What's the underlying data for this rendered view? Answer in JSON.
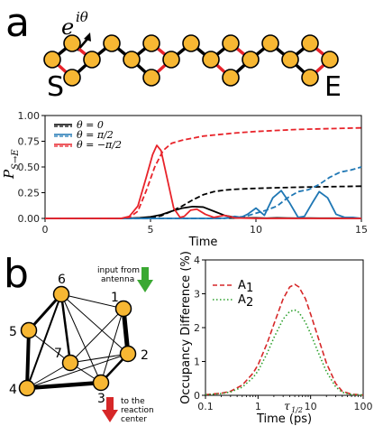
{
  "panel_a": {
    "letter": "a",
    "phase_label": "e",
    "phase_sup": "iθ",
    "start_label": "S",
    "end_label": "E"
  },
  "panel_b": {
    "letter": "b",
    "nodes": [
      "1",
      "2",
      "3",
      "4",
      "5",
      "6",
      "7"
    ],
    "input_label_1": "input from",
    "input_label_2": "antenna",
    "output_label_1": "to the",
    "output_label_2": "reaction",
    "output_label_3": "center"
  },
  "colors": {
    "black": "#000000",
    "blue": "#1f77b4",
    "red": "#e8232a",
    "node_fill": "#f7b733",
    "green": "#3aa832",
    "dark_red": "#d62728",
    "dark_green": "#2ca02c"
  },
  "chart_data": [
    {
      "type": "line",
      "xlabel": "Time",
      "ylabel": "P",
      "ylabel_sub": "S→E",
      "xlim": [
        0,
        15
      ],
      "ylim": [
        0,
        1.0
      ],
      "x_ticks": [
        "0",
        "5",
        "10",
        "15"
      ],
      "y_ticks": [
        "0.00",
        "0.25",
        "0.50",
        "0.75",
        "1.00"
      ],
      "legend_position": "top-left",
      "legend": [
        "θ = 0",
        "θ = π/2",
        "θ = −π/2"
      ],
      "series": [
        {
          "name": "θ = 0",
          "style": "solid",
          "color": "#000000",
          "x": [
            0,
            3.5,
            4.0,
            4.5,
            5.0,
            5.5,
            6.0,
            6.5,
            7.0,
            7.5,
            8.0,
            8.5,
            9.0,
            9.5,
            10.0,
            10.5,
            11.0,
            11.5,
            12.0,
            12.5,
            13.0,
            13.5,
            14.0,
            15.0
          ],
          "y": [
            0,
            0,
            0.002,
            0.006,
            0.015,
            0.035,
            0.07,
            0.1,
            0.115,
            0.11,
            0.07,
            0.03,
            0.01,
            0.005,
            0.005,
            0.002,
            0.005,
            0.003,
            0.002,
            0.003,
            0.002,
            0.002,
            0.002,
            0.001
          ]
        },
        {
          "name": "θ = 0 (cumulative)",
          "style": "dashed",
          "color": "#000000",
          "x": [
            0,
            3.5,
            4.5,
            5.0,
            5.5,
            6.0,
            6.5,
            7.0,
            7.5,
            8.0,
            8.5,
            9.0,
            9.5,
            10.0,
            11.0,
            12.0,
            13.0,
            14.0,
            15.0
          ],
          "y": [
            0,
            0,
            0.002,
            0.008,
            0.025,
            0.07,
            0.12,
            0.18,
            0.23,
            0.26,
            0.275,
            0.283,
            0.288,
            0.292,
            0.298,
            0.303,
            0.307,
            0.31,
            0.313
          ]
        },
        {
          "name": "θ = π/2",
          "style": "solid",
          "color": "#1f77b4",
          "x": [
            0,
            8.0,
            8.5,
            9.0,
            9.3,
            9.6,
            10.0,
            10.4,
            10.8,
            11.2,
            11.6,
            12.0,
            12.3,
            12.7,
            13.0,
            13.4,
            13.8,
            14.2,
            14.6,
            15.0
          ],
          "y": [
            0,
            0,
            0.002,
            0.02,
            0.01,
            0.04,
            0.1,
            0.03,
            0.2,
            0.27,
            0.15,
            0.01,
            0.02,
            0.16,
            0.26,
            0.2,
            0.04,
            0.01,
            0.01,
            0.0
          ]
        },
        {
          "name": "θ = π/2 (cumulative)",
          "style": "dashed",
          "color": "#1f77b4",
          "x": [
            0,
            8.5,
            9.0,
            9.5,
            10.0,
            10.5,
            11.0,
            11.5,
            12.0,
            12.5,
            13.0,
            13.5,
            14.0,
            14.5,
            15.0
          ],
          "y": [
            0,
            0,
            0.01,
            0.02,
            0.05,
            0.08,
            0.12,
            0.2,
            0.26,
            0.28,
            0.33,
            0.4,
            0.45,
            0.47,
            0.5
          ]
        },
        {
          "name": "θ = −π/2",
          "style": "solid",
          "color": "#e8232a",
          "x": [
            0,
            3.6,
            4.0,
            4.4,
            4.8,
            5.1,
            5.3,
            5.5,
            5.8,
            6.1,
            6.4,
            6.6,
            6.9,
            7.2,
            7.6,
            8.0,
            8.5,
            9.0,
            10.0,
            15.0
          ],
          "y": [
            0,
            0,
            0.02,
            0.12,
            0.4,
            0.62,
            0.71,
            0.66,
            0.38,
            0.1,
            0.01,
            0.02,
            0.08,
            0.09,
            0.04,
            0.01,
            0.03,
            0.005,
            0.0,
            0.0
          ]
        },
        {
          "name": "θ = −π/2 (cumulative)",
          "style": "dashed",
          "color": "#e8232a",
          "x": [
            0,
            3.6,
            4.0,
            4.4,
            4.8,
            5.2,
            5.6,
            6.0,
            6.5,
            7.0,
            7.5,
            8.0,
            9.0,
            10.0,
            11.0,
            12.0,
            13.0,
            14.0,
            15.0
          ],
          "y": [
            0,
            0,
            0.01,
            0.07,
            0.27,
            0.5,
            0.66,
            0.73,
            0.76,
            0.78,
            0.8,
            0.81,
            0.83,
            0.845,
            0.855,
            0.865,
            0.87,
            0.875,
            0.88
          ]
        }
      ]
    },
    {
      "type": "line",
      "xlabel": "Time (ps)",
      "ylabel": "Occupancy Difference (%)",
      "x_scale": "log",
      "xlim": [
        0.1,
        100
      ],
      "ylim": [
        0,
        4
      ],
      "x_ticks": [
        "0.1",
        "1",
        "10",
        "100"
      ],
      "y_ticks": [
        "0",
        "1",
        "2",
        "3",
        "4"
      ],
      "annotation": "τ",
      "annotation_sub": "1/2",
      "annotation_x": 5,
      "legend_position": "top-left",
      "legend": [
        "A",
        "A"
      ],
      "legend_subs": [
        "1",
        "2"
      ],
      "series": [
        {
          "name": "A1",
          "style": "dashed",
          "color": "#d62728",
          "x": [
            0.1,
            0.2,
            0.3,
            0.5,
            0.8,
            1.0,
            1.5,
            2.0,
            3.0,
            4.0,
            5.0,
            6.0,
            8.0,
            10.0,
            15.0,
            20.0,
            30.0,
            40.0,
            60.0,
            100.0
          ],
          "y": [
            0.02,
            0.06,
            0.12,
            0.3,
            0.65,
            0.9,
            1.55,
            2.1,
            2.85,
            3.2,
            3.28,
            3.2,
            2.85,
            2.4,
            1.55,
            0.95,
            0.35,
            0.12,
            0.03,
            0.01
          ]
        },
        {
          "name": "A2",
          "style": "dotted",
          "color": "#2ca02c",
          "x": [
            0.1,
            0.2,
            0.3,
            0.5,
            0.8,
            1.0,
            1.5,
            2.0,
            3.0,
            4.0,
            5.0,
            6.0,
            8.0,
            10.0,
            15.0,
            20.0,
            30.0,
            40.0,
            60.0,
            100.0
          ],
          "y": [
            0.02,
            0.05,
            0.1,
            0.24,
            0.52,
            0.72,
            1.25,
            1.7,
            2.25,
            2.48,
            2.52,
            2.45,
            2.15,
            1.82,
            1.15,
            0.7,
            0.25,
            0.09,
            0.02,
            0.01
          ]
        }
      ]
    }
  ]
}
